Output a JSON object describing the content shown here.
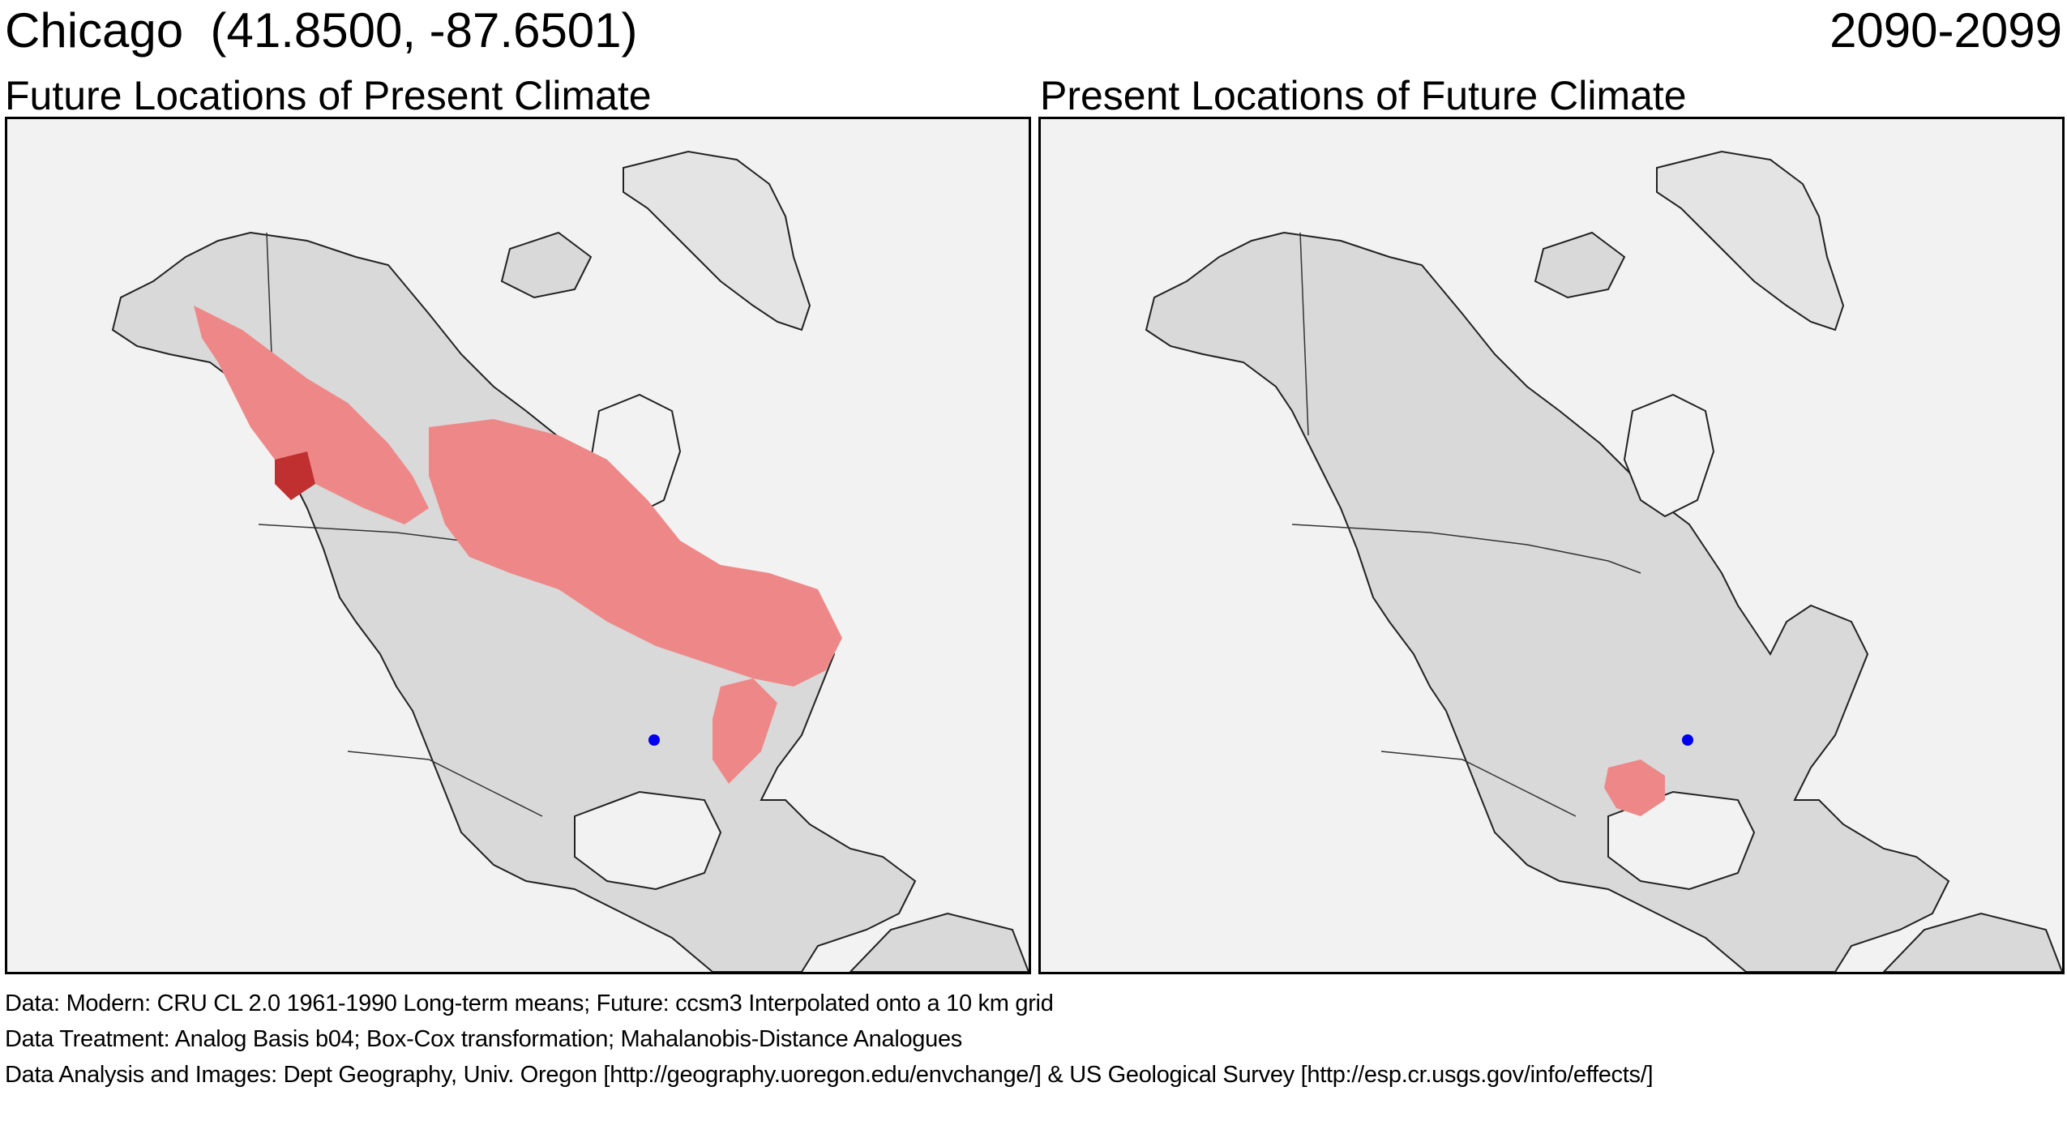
{
  "header": {
    "location": "Chicago  (41.8500, -87.6501)",
    "period": "2090-2099"
  },
  "panels": [
    {
      "title": "Future Locations of Present Climate"
    },
    {
      "title": "Present Locations of Future Climate"
    }
  ],
  "footer": {
    "data_line": "Data:  Modern: CRU CL 2.0 1961-1990 Long-term means; Future: ccsm3 Interpolated onto a 10 km grid",
    "treatment_line": "Data Treatment:  Analog Basis b04; Box-Cox transformation; Mahalanobis-Distance Analogues",
    "analysis_line": "Data Analysis and Images:  Dept Geography, Univ. Oregon [http://geography.uoregon.edu/envchange/] & US Geological Survey [http://esp.cr.usgs.gov/info/effects/]"
  },
  "colors": {
    "land": "#d9d9d9",
    "ocean": "#f2f2f2",
    "analog_light": "#ee8888",
    "analog_dark": "#c03030",
    "city_marker": "#0000ee"
  }
}
